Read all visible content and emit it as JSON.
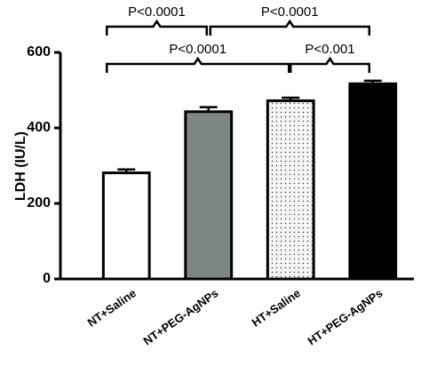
{
  "chart_data": {
    "type": "bar",
    "y_label": "LDH (IU/L)",
    "categories": [
      "NT+Saline",
      "NT+PEG-AgNPs",
      "HT+Saline",
      "HT+PEG-AgNPs"
    ],
    "values": [
      281,
      443,
      472,
      517
    ],
    "errors": [
      9,
      12,
      8,
      8
    ],
    "colors": [
      "#ffffff",
      "#7e8683",
      "#f4f4f4",
      "#000000"
    ],
    "fill_pattern": [
      "none",
      "none",
      "dots",
      "none"
    ],
    "ylim": [
      0,
      600
    ],
    "yticks": [
      0,
      200,
      400,
      600
    ],
    "grid": false,
    "annotations": [
      {
        "label": "P<0.0001",
        "between": [
          "NT+Saline",
          "NT+PEG-AgNPs"
        ]
      },
      {
        "label": "P<0.0001",
        "between": [
          "NT+PEG-AgNPs",
          "HT+PEG-AgNPs"
        ]
      },
      {
        "label": "P<0.0001",
        "between": [
          "NT+Saline",
          "HT+Saline"
        ]
      },
      {
        "label": "P<0.001",
        "between": [
          "HT+Saline",
          "HT+PEG-AgNPs"
        ]
      }
    ]
  }
}
